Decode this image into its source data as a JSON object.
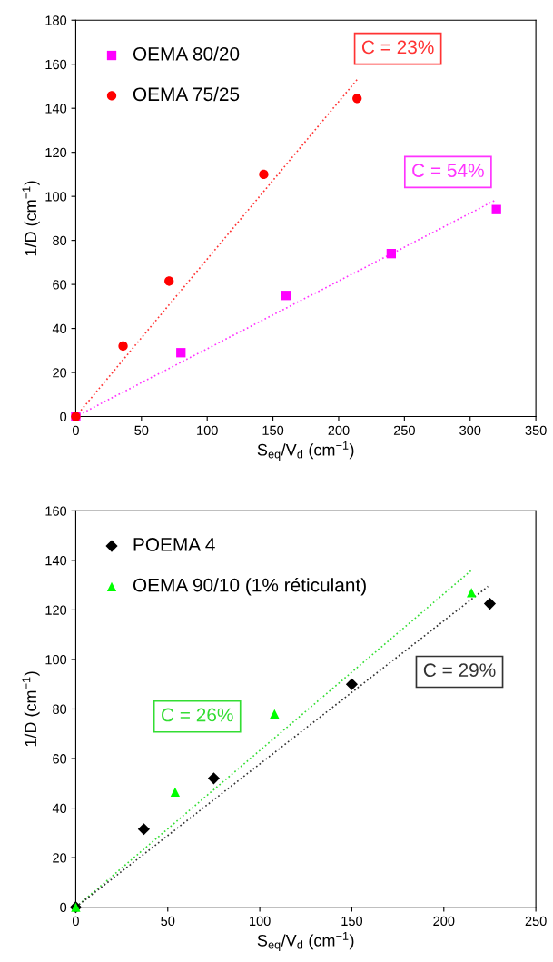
{
  "chart_data": [
    {
      "type": "scatter",
      "xlabel": "S$_{eq}$/V$_{d}$ (cm$^{−1}$)",
      "ylabel": "1/D (cm$^{−1}$)",
      "xlim": [
        0,
        350
      ],
      "ylim": [
        0,
        180
      ],
      "xticks": [
        0,
        50,
        100,
        150,
        200,
        250,
        300,
        350
      ],
      "yticks": [
        0,
        20,
        40,
        60,
        80,
        100,
        120,
        140,
        160,
        180
      ],
      "grid": false,
      "legend": "top left",
      "series": [
        {
          "type": "line",
          "color": "#ff3333",
          "line_style": "dotted",
          "marker": "none",
          "x": [
            0,
            214
          ],
          "values": [
            0,
            153
          ]
        },
        {
          "type": "line",
          "color": "#ff33ff",
          "line_style": "dotted",
          "marker": "none",
          "x": [
            0,
            320
          ],
          "values": [
            0,
            98.5
          ]
        },
        {
          "type": "scatter",
          "name": "OEMA 80/20",
          "color": "#ff00ff",
          "marker": "square",
          "x": [
            0,
            80,
            160,
            240,
            320
          ],
          "values": [
            0,
            29,
            55,
            74,
            94
          ]
        },
        {
          "type": "scatter",
          "name": "OEMA 75/25",
          "color": "#ff0000",
          "marker": "circle",
          "x": [
            0,
            36,
            71,
            143,
            214
          ],
          "values": [
            0,
            32,
            61.5,
            110,
            144.5
          ]
        }
      ],
      "annotations": [
        "C = 23%",
        "C = 54%"
      ]
    },
    {
      "type": "scatter",
      "xlabel": "S$_{eq}$/V$_{d}$ (cm$^{−1}$)",
      "ylabel": "1/D (cm$^{−1}$)",
      "xlim": [
        0,
        250
      ],
      "ylim": [
        0,
        160
      ],
      "xticks": [
        0,
        50,
        100,
        150,
        200,
        250
      ],
      "yticks": [
        0,
        20,
        40,
        60,
        80,
        100,
        120,
        140,
        160
      ],
      "grid": false,
      "legend": "top left",
      "series": [
        {
          "type": "line",
          "color": "#33dd33",
          "line_style": "dotted",
          "marker": "none",
          "x": [
            0,
            215
          ],
          "values": [
            0,
            136
          ]
        },
        {
          "type": "line",
          "color": "#333333",
          "line_style": "dotted",
          "marker": "none",
          "x": [
            0,
            224
          ],
          "values": [
            0,
            129.5
          ]
        },
        {
          "type": "scatter",
          "name": "POEMA 4",
          "color": "#000000",
          "marker": "diamond",
          "x": [
            0,
            37,
            75,
            150,
            225
          ],
          "values": [
            0,
            31.5,
            52,
            90,
            122.5
          ]
        },
        {
          "type": "scatter",
          "name": "OEMA 90/10 (1% réticulant)",
          "color": "#00ff00",
          "marker": "triangle",
          "x": [
            0,
            54,
            108,
            215
          ],
          "values": [
            0,
            46.5,
            78,
            127
          ]
        }
      ],
      "annotations": [
        "C = 26%",
        "C = 29%"
      ]
    }
  ]
}
